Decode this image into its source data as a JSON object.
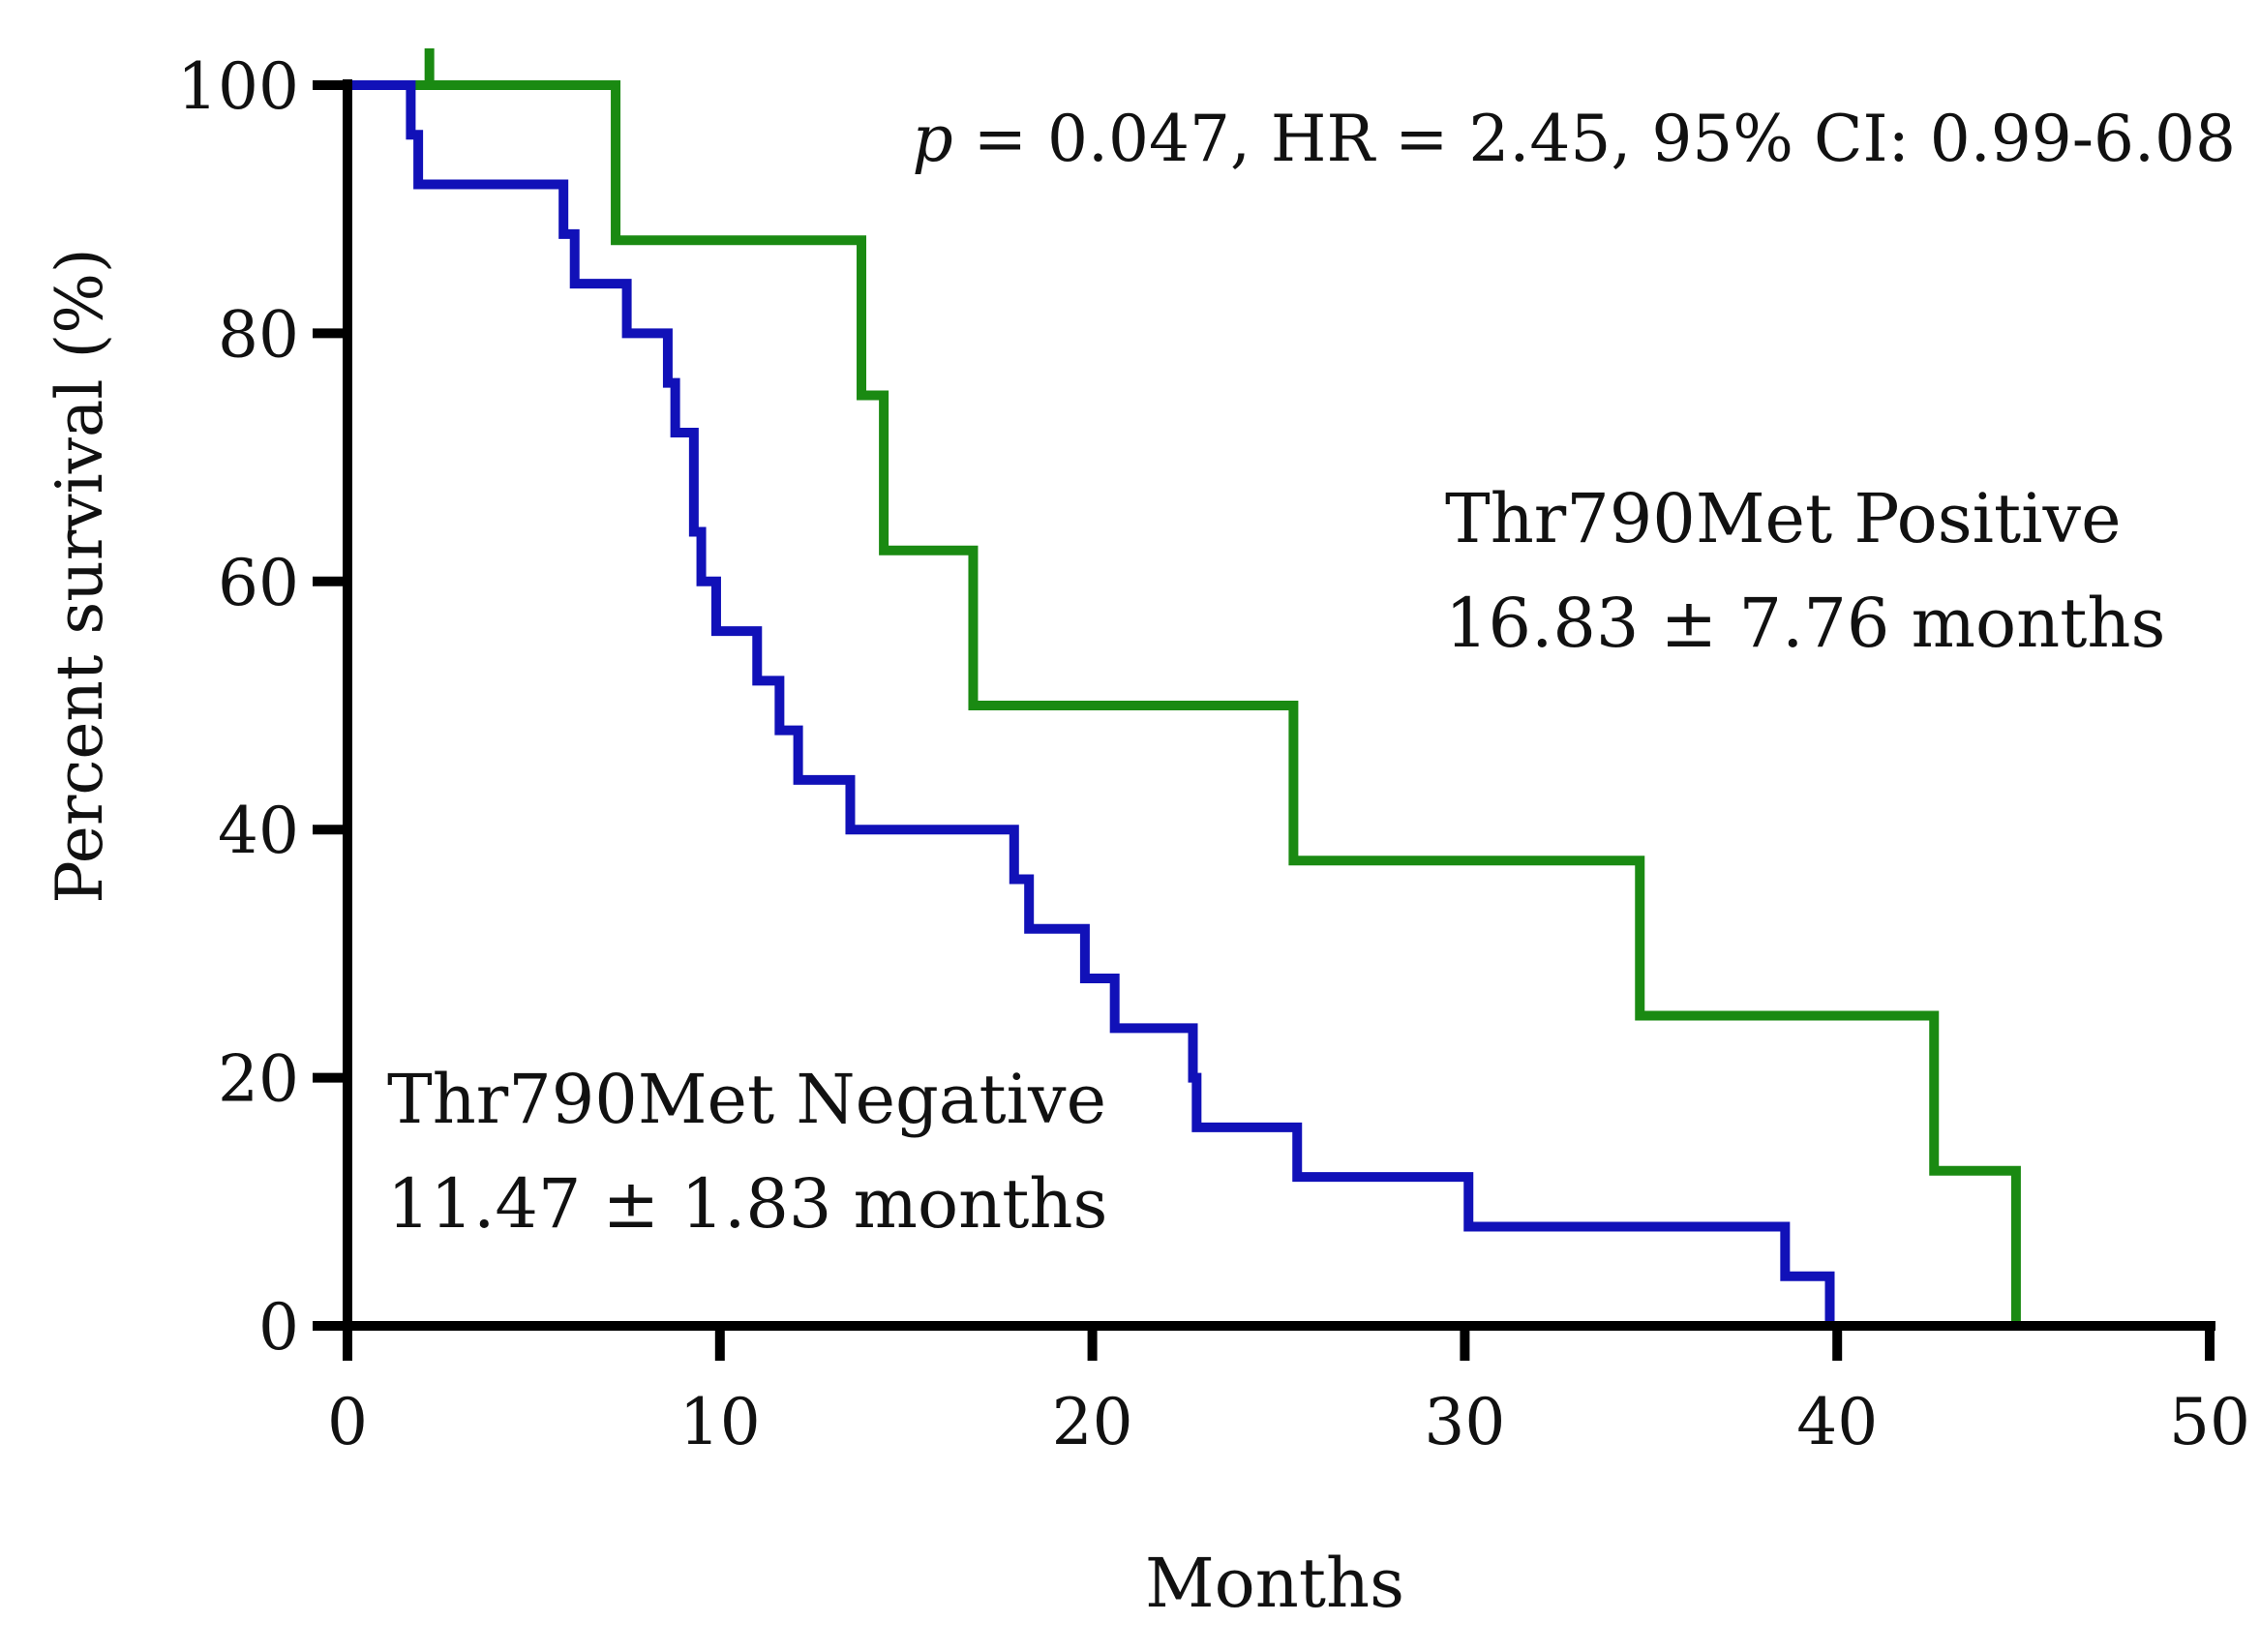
{
  "chart_data": {
    "type": "line",
    "subtype": "kaplan-meier",
    "title": "",
    "xlabel": "Months",
    "ylabel": "Percent survival  (%)",
    "xlim": [
      0,
      50
    ],
    "ylim": [
      0,
      100
    ],
    "x_ticks": [
      0,
      10,
      20,
      30,
      40,
      50
    ],
    "y_ticks": [
      0,
      20,
      40,
      60,
      80,
      100
    ],
    "grid": false,
    "statistics": {
      "p_symbol": "p",
      "p_rest": " = 0.047, HR = 2.45, 95% CI: 0.99-6.08"
    },
    "series": [
      {
        "name": "Thr790Met Positive",
        "median_label": "16.83 ± 7.76 months",
        "color": "#1a8a12",
        "steps": [
          [
            0,
            100
          ],
          [
            7.2,
            87.5
          ],
          [
            13.8,
            75
          ],
          [
            14.4,
            62.5
          ],
          [
            16.8,
            50
          ],
          [
            25.4,
            37.5
          ],
          [
            34.7,
            25
          ],
          [
            42.6,
            12.5
          ],
          [
            44.8,
            0
          ]
        ],
        "end": 44.8,
        "censored": [
          2.2
        ]
      },
      {
        "name": "Thr790Met Negative",
        "median_label": "11.47 ± 1.83 months",
        "color": "#1111b8",
        "steps": [
          [
            0,
            100
          ],
          [
            1.7,
            96
          ],
          [
            1.9,
            92
          ],
          [
            5.8,
            88
          ],
          [
            6.1,
            84
          ],
          [
            7.5,
            80
          ],
          [
            8.6,
            76
          ],
          [
            8.8,
            72
          ],
          [
            9.3,
            64
          ],
          [
            9.5,
            60
          ],
          [
            9.9,
            56
          ],
          [
            11.0,
            52
          ],
          [
            11.6,
            48
          ],
          [
            12.1,
            44
          ],
          [
            13.5,
            40
          ],
          [
            17.9,
            36
          ],
          [
            18.3,
            32
          ],
          [
            19.8,
            28
          ],
          [
            20.6,
            24
          ],
          [
            22.7,
            20
          ],
          [
            22.8,
            16
          ],
          [
            25.5,
            12
          ],
          [
            30.1,
            8
          ],
          [
            38.6,
            4
          ],
          [
            39.8,
            0
          ]
        ],
        "end": 39.8,
        "censored": []
      }
    ]
  }
}
